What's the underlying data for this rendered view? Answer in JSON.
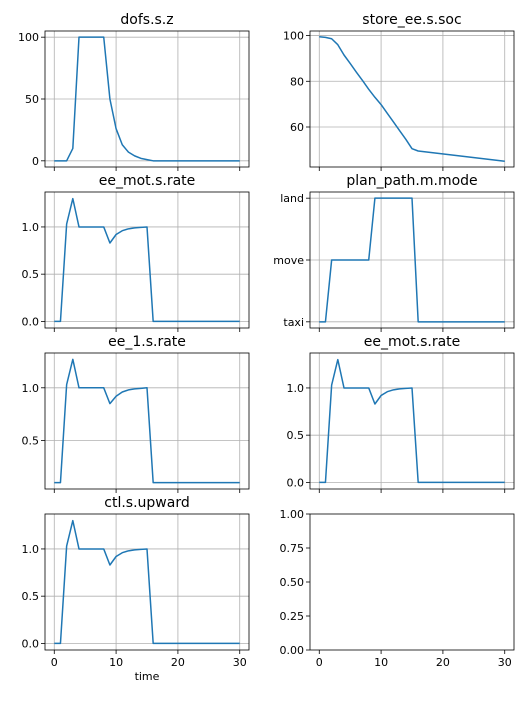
{
  "chart_data": [
    {
      "type": "line",
      "title": "dofs.s.z",
      "x": [
        0,
        2,
        3,
        4,
        5,
        6,
        7,
        8,
        9,
        10,
        11,
        12,
        13,
        14,
        15,
        16,
        30
      ],
      "series": [
        {
          "values": [
            0,
            0,
            10,
            100,
            100,
            100,
            100,
            100,
            50,
            26,
            13,
            7,
            4,
            2,
            1,
            0,
            0
          ]
        }
      ],
      "xlim": [
        -1.5,
        31.5
      ],
      "ylim": [
        -5,
        105
      ],
      "xticks": [
        0,
        10,
        20,
        30
      ],
      "yticks": [
        0,
        50,
        100
      ],
      "ytick_labels": [
        "0",
        "50",
        "100"
      ],
      "show_xticklabels": false,
      "xlabel": "",
      "grid": true
    },
    {
      "type": "line",
      "title": "store_ee.s.soc",
      "x": [
        0,
        1,
        2,
        3,
        4,
        5,
        6,
        7,
        8,
        9,
        10,
        11,
        12,
        13,
        14,
        15,
        16,
        30
      ],
      "series": [
        {
          "values": [
            99.5,
            99.2,
            98.6,
            96,
            91.5,
            87.8,
            84,
            80.3,
            76.5,
            73,
            69.8,
            66,
            62.2,
            58.4,
            54.6,
            50.5,
            49.5,
            45
          ]
        }
      ],
      "xlim": [
        -1.5,
        31.5
      ],
      "ylim": [
        42.5,
        102
      ],
      "xticks": [
        0,
        10,
        20,
        30
      ],
      "yticks": [
        60,
        80,
        100
      ],
      "ytick_labels": [
        "60",
        "80",
        "100"
      ],
      "show_xticklabels": false,
      "xlabel": "",
      "grid": true
    },
    {
      "type": "line",
      "title": "ee_mot.s.rate",
      "x": [
        0,
        1,
        2,
        3,
        4,
        5,
        6,
        7,
        8,
        9,
        10,
        11,
        12,
        13,
        14,
        15,
        16,
        30
      ],
      "series": [
        {
          "values": [
            0,
            0,
            1.03,
            1.3,
            1.0,
            1.0,
            1.0,
            1.0,
            1.0,
            0.83,
            0.92,
            0.96,
            0.98,
            0.99,
            0.995,
            1.0,
            0,
            0
          ]
        }
      ],
      "xlim": [
        -1.5,
        31.5
      ],
      "ylim": [
        -0.07,
        1.37
      ],
      "xticks": [
        0,
        10,
        20,
        30
      ],
      "yticks": [
        0,
        0.5,
        1.0
      ],
      "ytick_labels": [
        "0.0",
        "0.5",
        "1.0"
      ],
      "show_xticklabels": false,
      "xlabel": "",
      "grid": true
    },
    {
      "type": "line",
      "title": "plan_path.m.mode",
      "x": [
        0,
        1,
        2,
        3,
        4,
        5,
        6,
        7,
        8,
        9,
        10,
        11,
        12,
        13,
        14,
        15,
        16,
        30
      ],
      "series": [
        {
          "values": [
            0,
            0,
            1,
            1,
            1,
            1,
            1,
            1,
            1,
            2,
            2,
            2,
            2,
            2,
            2,
            2,
            0,
            0
          ]
        }
      ],
      "xlim": [
        -1.5,
        31.5
      ],
      "ylim": [
        -0.1,
        2.1
      ],
      "xticks": [
        0,
        10,
        20,
        30
      ],
      "yticks": [
        0,
        1,
        2
      ],
      "ytick_labels": [
        "taxi",
        "move",
        "land"
      ],
      "show_xticklabels": false,
      "xlabel": "",
      "grid": true
    },
    {
      "type": "line",
      "title": "ee_1.s.rate",
      "x": [
        0,
        1,
        2,
        3,
        4,
        5,
        6,
        7,
        8,
        9,
        10,
        11,
        12,
        13,
        14,
        15,
        16,
        30
      ],
      "series": [
        {
          "values": [
            0.1,
            0.1,
            1.03,
            1.27,
            1.0,
            1.0,
            1.0,
            1.0,
            1.0,
            0.85,
            0.92,
            0.96,
            0.98,
            0.99,
            0.995,
            1.0,
            0.1,
            0.1
          ]
        }
      ],
      "xlim": [
        -1.5,
        31.5
      ],
      "ylim": [
        0.04,
        1.33
      ],
      "xticks": [
        0,
        10,
        20,
        30
      ],
      "yticks": [
        0.5,
        1.0
      ],
      "ytick_labels": [
        "0.5",
        "1.0"
      ],
      "show_xticklabels": false,
      "xlabel": "",
      "grid": true
    },
    {
      "type": "line",
      "title": "ee_mot.s.rate",
      "x": [
        0,
        1,
        2,
        3,
        4,
        5,
        6,
        7,
        8,
        9,
        10,
        11,
        12,
        13,
        14,
        15,
        16,
        30
      ],
      "series": [
        {
          "values": [
            0,
            0,
            1.03,
            1.3,
            1.0,
            1.0,
            1.0,
            1.0,
            1.0,
            0.83,
            0.92,
            0.96,
            0.98,
            0.99,
            0.995,
            1.0,
            0,
            0
          ]
        }
      ],
      "xlim": [
        -1.5,
        31.5
      ],
      "ylim": [
        -0.07,
        1.37
      ],
      "xticks": [
        0,
        10,
        20,
        30
      ],
      "yticks": [
        0,
        0.5,
        1.0
      ],
      "ytick_labels": [
        "0.0",
        "0.5",
        "1.0"
      ],
      "show_xticklabels": false,
      "xlabel": "",
      "grid": true
    },
    {
      "type": "line",
      "title": "ctl.s.upward",
      "x": [
        0,
        1,
        2,
        3,
        4,
        5,
        6,
        7,
        8,
        9,
        10,
        11,
        12,
        13,
        14,
        15,
        16,
        30
      ],
      "series": [
        {
          "values": [
            0,
            0,
            1.03,
            1.3,
            1.0,
            1.0,
            1.0,
            1.0,
            1.0,
            0.83,
            0.92,
            0.96,
            0.98,
            0.99,
            0.995,
            1.0,
            0,
            0
          ]
        }
      ],
      "xlim": [
        -1.5,
        31.5
      ],
      "ylim": [
        -0.07,
        1.37
      ],
      "xticks": [
        0,
        10,
        20,
        30
      ],
      "yticks": [
        0,
        0.5,
        1.0
      ],
      "ytick_labels": [
        "0.0",
        "0.5",
        "1.0"
      ],
      "show_xticklabels": true,
      "xtick_labels": [
        "0",
        "10",
        "20",
        "30"
      ],
      "xlabel": "time",
      "grid": true
    },
    {
      "type": "line",
      "title": "",
      "x": [],
      "series": [],
      "xlim": [
        -1.5,
        31.5
      ],
      "ylim": [
        0,
        1
      ],
      "xticks": [
        0,
        10,
        20,
        30
      ],
      "yticks": [
        0,
        0.25,
        0.5,
        0.75,
        1.0
      ],
      "ytick_labels": [
        "0.00",
        "0.25",
        "0.50",
        "0.75",
        "1.00"
      ],
      "show_xticklabels": true,
      "xtick_labels": [
        "0",
        "10",
        "20",
        "30"
      ],
      "xlabel": "",
      "grid": false
    }
  ]
}
